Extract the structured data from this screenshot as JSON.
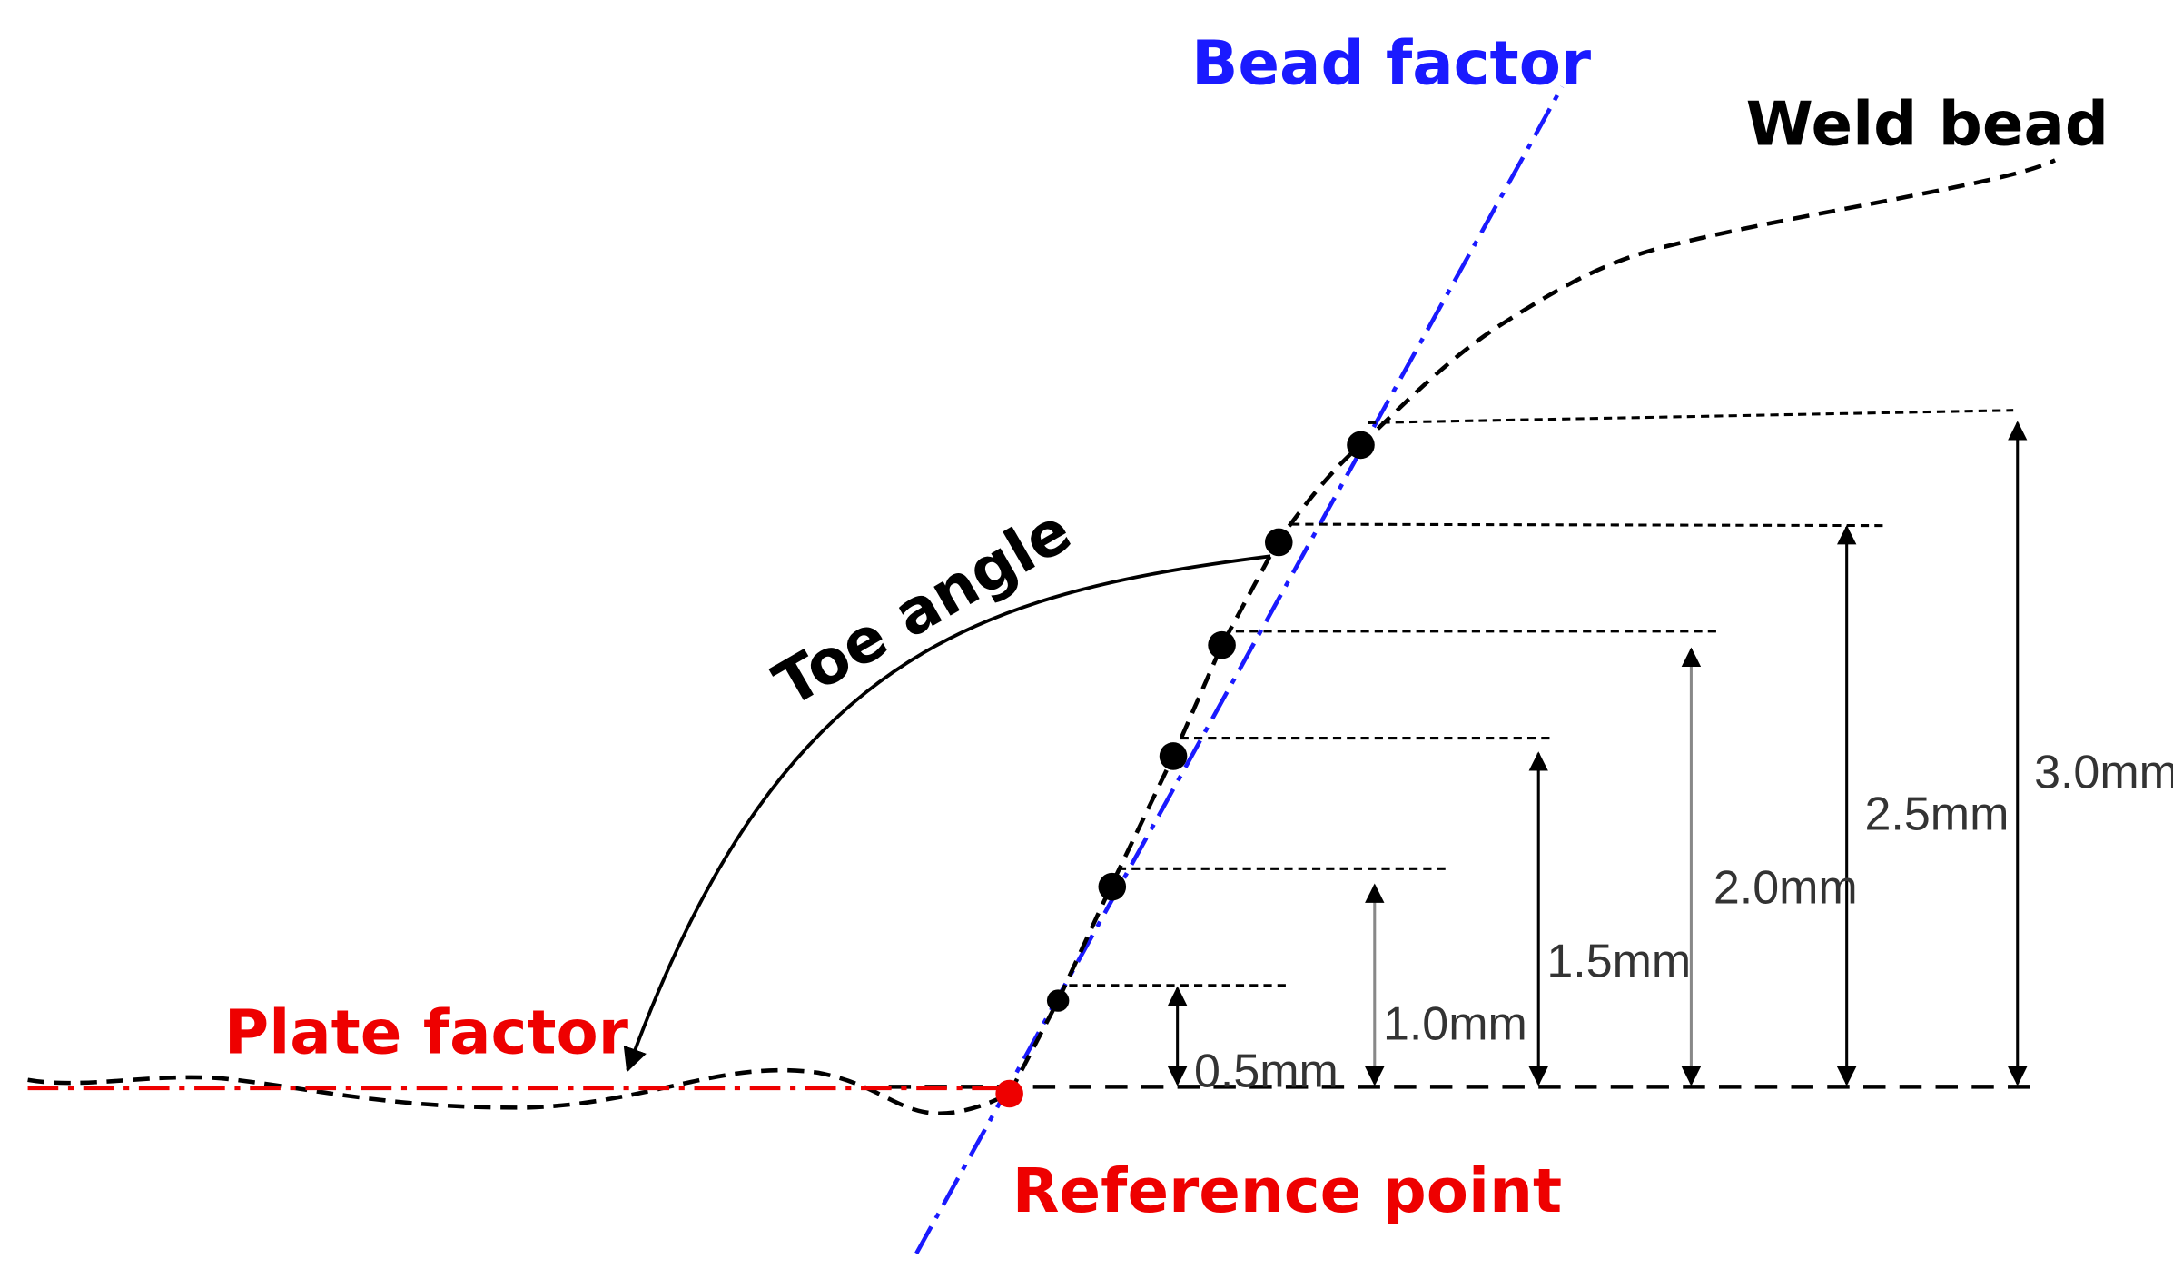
{
  "labels": {
    "bead_factor": "Bead factor",
    "weld_bead": "Weld bead",
    "toe_angle": "Toe angle",
    "plate_factor": "Plate factor",
    "reference_point": "Reference point"
  },
  "dimensions": [
    "0.5mm",
    "1.0mm",
    "1.5mm",
    "2.0mm",
    "2.5mm",
    "3.0mm"
  ]
}
